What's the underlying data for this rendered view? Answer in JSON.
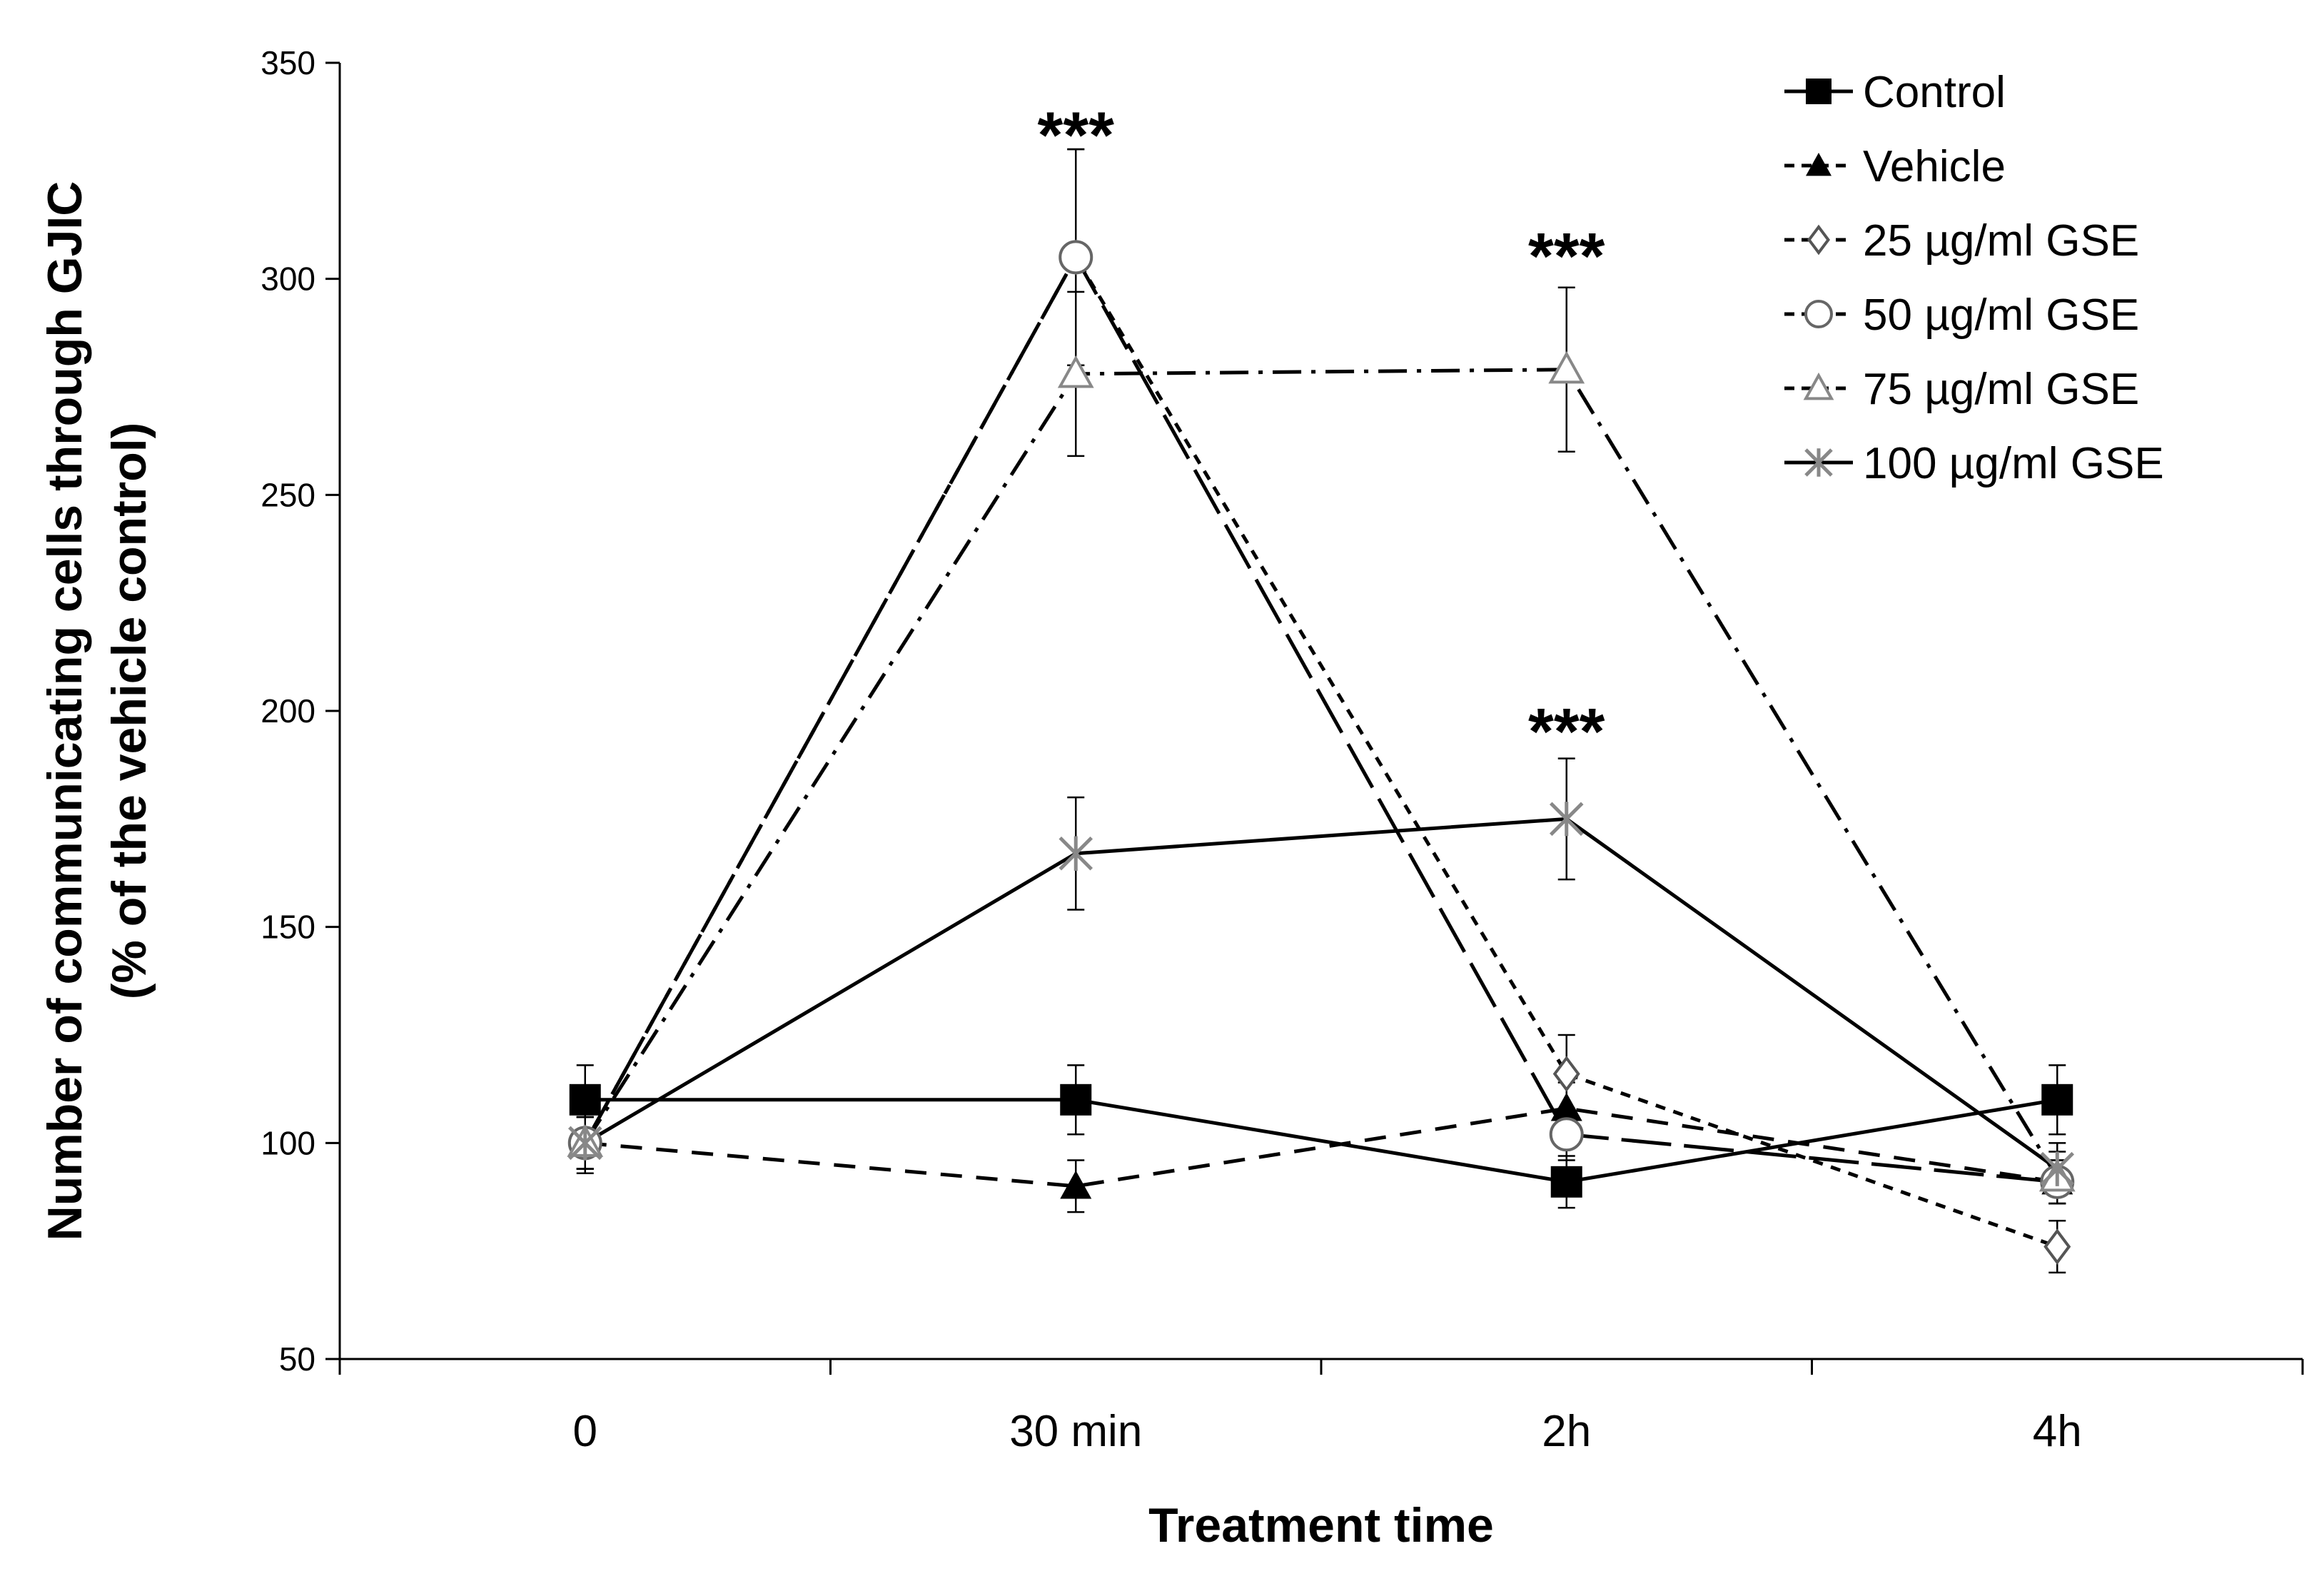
{
  "chart_data": {
    "type": "line",
    "title": "",
    "xlabel": "Treatment time",
    "ylabel_line1": "Number of communicating cells through GJIC",
    "ylabel_line2": "(% of the vehicle control)",
    "categories": [
      "0",
      "30 min",
      "2h",
      "4h"
    ],
    "ylim": [
      50,
      350
    ],
    "yticks": [
      50,
      100,
      150,
      200,
      250,
      300,
      350
    ],
    "ytick_labels": [
      "50",
      "100",
      "150",
      "200",
      "250",
      "300",
      "350"
    ],
    "grid": false,
    "legend_position": "top-right",
    "series": [
      {
        "name": "Control",
        "values": [
          110,
          110,
          91,
          110
        ],
        "errors": [
          8,
          8,
          6,
          8
        ],
        "marker": "filled-square",
        "dash": "solid",
        "markerColor": "#000000"
      },
      {
        "name": "Vehicle",
        "values": [
          100,
          90,
          108,
          91
        ],
        "errors": [
          6,
          6,
          6,
          5
        ],
        "marker": "filled-triangle",
        "dash": "dash",
        "markerColor": "#000000"
      },
      {
        "name": "25 µg/ml GSE",
        "values": [
          100,
          305,
          116,
          76
        ],
        "errors": [
          6,
          25,
          9,
          6
        ],
        "marker": "open-diamond",
        "dash": "dot",
        "markerColor": "#555555"
      },
      {
        "name": "50 µg/ml GSE",
        "values": [
          100,
          305,
          102,
          91
        ],
        "errors": [
          6,
          25,
          6,
          5
        ],
        "marker": "open-circle",
        "dash": "longdash",
        "markerColor": "#666666"
      },
      {
        "name": "75 µg/ml GSE",
        "values": [
          100,
          278,
          279,
          92
        ],
        "errors": [
          6,
          19,
          19,
          6
        ],
        "marker": "open-triangle",
        "dash": "dashdot",
        "markerColor": "#888888"
      },
      {
        "name": "100 µg/ml GSE",
        "values": [
          100,
          167,
          175,
          94
        ],
        "errors": [
          7,
          13,
          14,
          6
        ],
        "marker": "star",
        "dash": "solid",
        "markerColor": "#888888"
      }
    ],
    "annotations": [
      {
        "text": "***",
        "x": "30 min",
        "y": 333
      },
      {
        "text": "***",
        "x": "2h",
        "y": 305
      },
      {
        "text": "***",
        "x": "2h",
        "y": 195
      }
    ]
  }
}
